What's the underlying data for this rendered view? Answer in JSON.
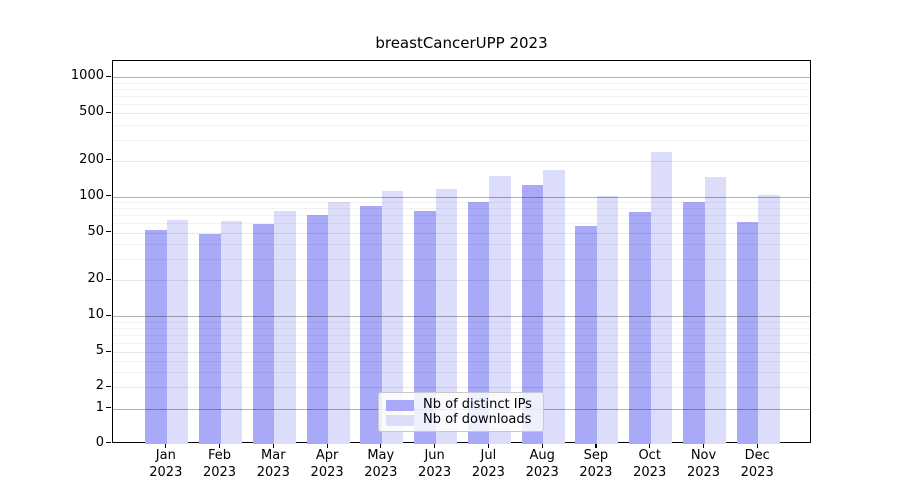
{
  "chart_data": {
    "type": "bar",
    "title": "breastCancerUPP 2023",
    "categories": [
      "Jan 2023",
      "Feb 2023",
      "Mar 2023",
      "Apr 2023",
      "May 2023",
      "Jun 2023",
      "Jul 2023",
      "Aug 2023",
      "Sep 2023",
      "Oct 2023",
      "Nov 2023",
      "Dec 2023"
    ],
    "series": [
      {
        "name": "Nb of distinct IPs",
        "color": "#a8aaf8",
        "values": [
          53,
          49,
          59,
          71,
          83,
          76,
          90,
          126,
          57,
          74,
          91,
          62
        ]
      },
      {
        "name": "Nb of downloads",
        "color": "#dbddfa",
        "values": [
          64,
          63,
          76,
          91,
          112,
          115,
          149,
          167,
          102,
          238,
          145,
          103
        ]
      }
    ],
    "yticks": [
      0,
      1,
      2,
      5,
      10,
      20,
      50,
      100,
      200,
      500,
      1000
    ],
    "yscale": "log above 2, compressed linear below 2, includes 0",
    "ylim": [
      0,
      1360
    ],
    "xlabel": "",
    "ylabel": "",
    "grid": true,
    "legend_position": "lower center"
  }
}
